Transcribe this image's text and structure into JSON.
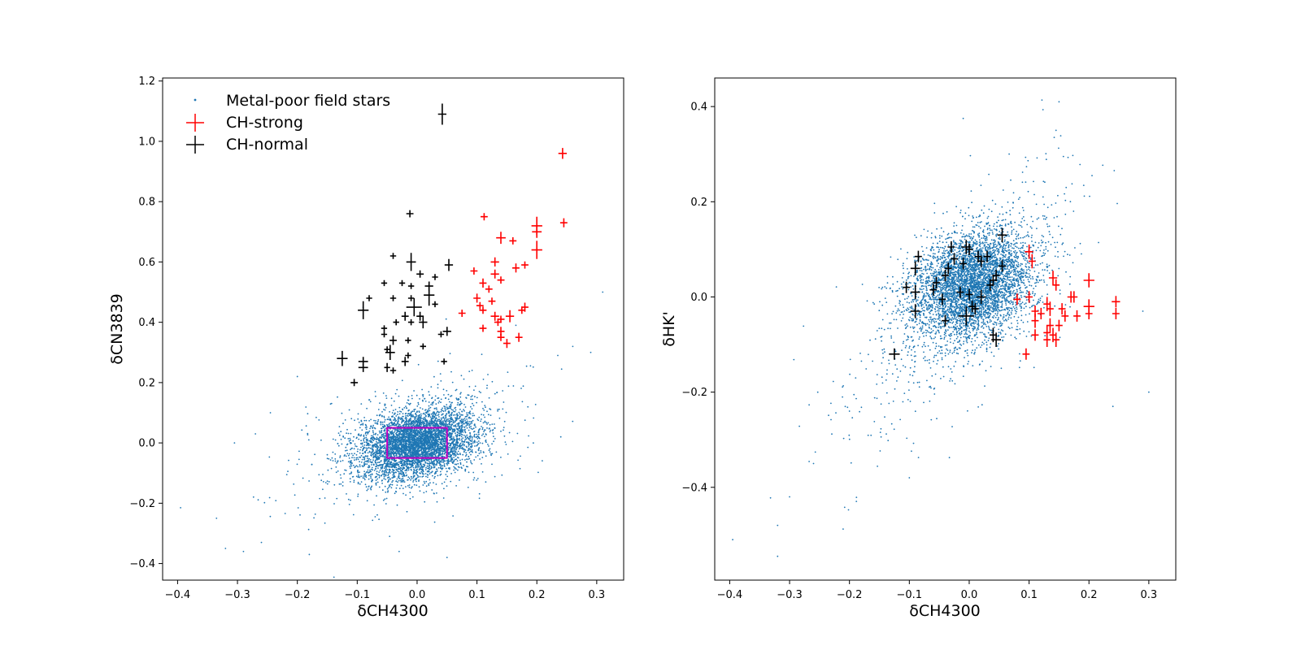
{
  "colors": {
    "field": "#1f77b4",
    "ch_strong": "#ff0000",
    "ch_normal": "#000000",
    "box": "#bf00bf"
  },
  "legend": {
    "entries": [
      "Metal-poor field stars",
      "CH-strong",
      "CH-normal"
    ]
  },
  "chart_data": [
    {
      "type": "scatter",
      "title": "",
      "xlabel": "δCH4300",
      "ylabel": "δCN3839",
      "xlim": [
        -0.425,
        0.345
      ],
      "ylim": [
        -0.455,
        1.21
      ],
      "xticks": [
        -0.4,
        -0.3,
        -0.2,
        -0.1,
        0.0,
        0.1,
        0.2,
        0.3
      ],
      "yticks": [
        -0.4,
        -0.2,
        0.0,
        0.2,
        0.4,
        0.6,
        0.8,
        1.0,
        1.2
      ],
      "grid": false,
      "legend_position": "top-left",
      "box": {
        "x": [
          -0.05,
          0.05
        ],
        "y": [
          -0.05,
          0.05
        ]
      },
      "field_stars": {
        "description_points": "dense cloud centred at (0,0) with sparse outliers",
        "outliers": [
          [
            -0.395,
            -0.215
          ],
          [
            -0.335,
            -0.25
          ],
          [
            -0.32,
            -0.35
          ],
          [
            -0.305,
            0.0
          ],
          [
            -0.29,
            -0.36
          ],
          [
            -0.27,
            0.03
          ],
          [
            -0.26,
            -0.33
          ],
          [
            -0.245,
            0.1
          ],
          [
            -0.2,
            0.22
          ],
          [
            -0.18,
            -0.37
          ],
          [
            -0.09,
            0.45
          ],
          [
            -0.03,
            -0.36
          ],
          [
            0.05,
            -0.38
          ],
          [
            0.26,
            0.32
          ],
          [
            0.29,
            0.3
          ],
          [
            0.31,
            0.5
          ],
          [
            0.235,
            0.29
          ],
          [
            0.24,
            0.02
          ],
          [
            0.165,
            0.39
          ],
          [
            0.14,
            0.36
          ]
        ]
      },
      "ch_strong": [
        {
          "x": 0.243,
          "y": 0.96,
          "ex": 0.007,
          "ey": 0.018
        },
        {
          "x": 0.245,
          "y": 0.73,
          "ex": 0.006,
          "ey": 0.015
        },
        {
          "x": 0.112,
          "y": 0.75,
          "ex": 0.006,
          "ey": 0.012
        },
        {
          "x": 0.2,
          "y": 0.72,
          "ex": 0.009,
          "ey": 0.03
        },
        {
          "x": 0.2,
          "y": 0.7,
          "ex": 0.008,
          "ey": 0.02
        },
        {
          "x": 0.2,
          "y": 0.64,
          "ex": 0.009,
          "ey": 0.03
        },
        {
          "x": 0.14,
          "y": 0.68,
          "ex": 0.008,
          "ey": 0.02
        },
        {
          "x": 0.16,
          "y": 0.67,
          "ex": 0.006,
          "ey": 0.012
        },
        {
          "x": 0.13,
          "y": 0.6,
          "ex": 0.007,
          "ey": 0.015
        },
        {
          "x": 0.18,
          "y": 0.59,
          "ex": 0.006,
          "ey": 0.012
        },
        {
          "x": 0.165,
          "y": 0.58,
          "ex": 0.006,
          "ey": 0.015
        },
        {
          "x": 0.095,
          "y": 0.57,
          "ex": 0.006,
          "ey": 0.012
        },
        {
          "x": 0.13,
          "y": 0.56,
          "ex": 0.007,
          "ey": 0.015
        },
        {
          "x": 0.14,
          "y": 0.54,
          "ex": 0.006,
          "ey": 0.012
        },
        {
          "x": 0.11,
          "y": 0.53,
          "ex": 0.006,
          "ey": 0.015
        },
        {
          "x": 0.12,
          "y": 0.51,
          "ex": 0.006,
          "ey": 0.012
        },
        {
          "x": 0.1,
          "y": 0.48,
          "ex": 0.006,
          "ey": 0.015
        },
        {
          "x": 0.125,
          "y": 0.47,
          "ex": 0.006,
          "ey": 0.012
        },
        {
          "x": 0.105,
          "y": 0.455,
          "ex": 0.006,
          "ey": 0.012
        },
        {
          "x": 0.11,
          "y": 0.44,
          "ex": 0.006,
          "ey": 0.012
        },
        {
          "x": 0.075,
          "y": 0.43,
          "ex": 0.006,
          "ey": 0.012
        },
        {
          "x": 0.18,
          "y": 0.45,
          "ex": 0.006,
          "ey": 0.015
        },
        {
          "x": 0.175,
          "y": 0.44,
          "ex": 0.006,
          "ey": 0.012
        },
        {
          "x": 0.13,
          "y": 0.42,
          "ex": 0.007,
          "ey": 0.015
        },
        {
          "x": 0.14,
          "y": 0.41,
          "ex": 0.006,
          "ey": 0.012
        },
        {
          "x": 0.155,
          "y": 0.42,
          "ex": 0.007,
          "ey": 0.02
        },
        {
          "x": 0.135,
          "y": 0.4,
          "ex": 0.006,
          "ey": 0.012
        },
        {
          "x": 0.11,
          "y": 0.38,
          "ex": 0.006,
          "ey": 0.012
        },
        {
          "x": 0.14,
          "y": 0.37,
          "ex": 0.006,
          "ey": 0.015
        },
        {
          "x": 0.14,
          "y": 0.35,
          "ex": 0.006,
          "ey": 0.012
        },
        {
          "x": 0.17,
          "y": 0.35,
          "ex": 0.006,
          "ey": 0.015
        },
        {
          "x": 0.15,
          "y": 0.33,
          "ex": 0.006,
          "ey": 0.015
        }
      ],
      "ch_normal": [
        {
          "x": 0.042,
          "y": 1.09,
          "ex": 0.007,
          "ey": 0.035
        },
        {
          "x": -0.012,
          "y": 0.76,
          "ex": 0.006,
          "ey": 0.012
        },
        {
          "x": -0.04,
          "y": 0.62,
          "ex": 0.005,
          "ey": 0.01
        },
        {
          "x": -0.01,
          "y": 0.6,
          "ex": 0.008,
          "ey": 0.03
        },
        {
          "x": 0.053,
          "y": 0.59,
          "ex": 0.007,
          "ey": 0.02
        },
        {
          "x": 0.005,
          "y": 0.56,
          "ex": 0.006,
          "ey": 0.012
        },
        {
          "x": 0.03,
          "y": 0.55,
          "ex": 0.005,
          "ey": 0.01
        },
        {
          "x": -0.055,
          "y": 0.53,
          "ex": 0.005,
          "ey": 0.01
        },
        {
          "x": -0.025,
          "y": 0.53,
          "ex": 0.005,
          "ey": 0.01
        },
        {
          "x": -0.01,
          "y": 0.52,
          "ex": 0.005,
          "ey": 0.01
        },
        {
          "x": 0.02,
          "y": 0.52,
          "ex": 0.007,
          "ey": 0.015
        },
        {
          "x": 0.02,
          "y": 0.49,
          "ex": 0.009,
          "ey": 0.035
        },
        {
          "x": -0.08,
          "y": 0.48,
          "ex": 0.005,
          "ey": 0.01
        },
        {
          "x": -0.04,
          "y": 0.48,
          "ex": 0.005,
          "ey": 0.01
        },
        {
          "x": -0.01,
          "y": 0.48,
          "ex": 0.005,
          "ey": 0.01
        },
        {
          "x": 0.03,
          "y": 0.46,
          "ex": 0.005,
          "ey": 0.01
        },
        {
          "x": -0.005,
          "y": 0.45,
          "ex": 0.013,
          "ey": 0.03
        },
        {
          "x": -0.09,
          "y": 0.44,
          "ex": 0.009,
          "ey": 0.03
        },
        {
          "x": -0.02,
          "y": 0.42,
          "ex": 0.006,
          "ey": 0.015
        },
        {
          "x": 0.005,
          "y": 0.42,
          "ex": 0.006,
          "ey": 0.015
        },
        {
          "x": 0.01,
          "y": 0.4,
          "ex": 0.007,
          "ey": 0.02
        },
        {
          "x": -0.01,
          "y": 0.4,
          "ex": 0.005,
          "ey": 0.01
        },
        {
          "x": -0.035,
          "y": 0.4,
          "ex": 0.005,
          "ey": 0.01
        },
        {
          "x": -0.055,
          "y": 0.38,
          "ex": 0.005,
          "ey": 0.01
        },
        {
          "x": 0.05,
          "y": 0.37,
          "ex": 0.007,
          "ey": 0.015
        },
        {
          "x": 0.04,
          "y": 0.36,
          "ex": 0.005,
          "ey": 0.01
        },
        {
          "x": -0.055,
          "y": 0.36,
          "ex": 0.005,
          "ey": 0.01
        },
        {
          "x": -0.04,
          "y": 0.34,
          "ex": 0.006,
          "ey": 0.015
        },
        {
          "x": -0.015,
          "y": 0.34,
          "ex": 0.005,
          "ey": 0.01
        },
        {
          "x": 0.01,
          "y": 0.32,
          "ex": 0.005,
          "ey": 0.01
        },
        {
          "x": -0.05,
          "y": 0.31,
          "ex": 0.005,
          "ey": 0.01
        },
        {
          "x": -0.045,
          "y": 0.3,
          "ex": 0.008,
          "ey": 0.025
        },
        {
          "x": -0.125,
          "y": 0.28,
          "ex": 0.009,
          "ey": 0.025
        },
        {
          "x": -0.015,
          "y": 0.29,
          "ex": 0.005,
          "ey": 0.01
        },
        {
          "x": -0.02,
          "y": 0.27,
          "ex": 0.006,
          "ey": 0.015
        },
        {
          "x": -0.09,
          "y": 0.27,
          "ex": 0.008,
          "ey": 0.015
        },
        {
          "x": 0.045,
          "y": 0.27,
          "ex": 0.005,
          "ey": 0.01
        },
        {
          "x": -0.09,
          "y": 0.25,
          "ex": 0.008,
          "ey": 0.015
        },
        {
          "x": -0.05,
          "y": 0.25,
          "ex": 0.005,
          "ey": 0.015
        },
        {
          "x": -0.04,
          "y": 0.24,
          "ex": 0.005,
          "ey": 0.01
        },
        {
          "x": -0.105,
          "y": 0.2,
          "ex": 0.006,
          "ey": 0.012
        }
      ]
    },
    {
      "type": "scatter",
      "title": "",
      "xlabel": "δCH4300",
      "ylabel": "δHK'",
      "xlim": [
        -0.425,
        0.345
      ],
      "ylim": [
        -0.595,
        0.46
      ],
      "xticks": [
        -0.4,
        -0.3,
        -0.2,
        -0.1,
        0.0,
        0.1,
        0.2,
        0.3
      ],
      "yticks": [
        -0.4,
        -0.2,
        0.0,
        0.2,
        0.4
      ],
      "grid": false,
      "field_stars": {
        "description_points": "dense cloud centred near (0,0.02) with a sparse tail toward (-0.3,-0.45)",
        "outliers": [
          [
            -0.395,
            -0.51
          ],
          [
            -0.32,
            -0.545
          ],
          [
            -0.32,
            -0.48
          ],
          [
            -0.3,
            -0.42
          ],
          [
            -0.26,
            -0.35
          ],
          [
            -0.2,
            -0.24
          ],
          [
            -0.1,
            -0.38
          ],
          [
            -0.01,
            0.375
          ],
          [
            0.15,
            0.41
          ],
          [
            0.145,
            0.35
          ],
          [
            0.3,
            -0.2
          ],
          [
            0.29,
            -0.03
          ],
          [
            0.24,
            -0.23
          ]
        ]
      },
      "ch_strong": [
        {
          "x": 0.1,
          "y": 0.095,
          "ex": 0.007,
          "ey": 0.015
        },
        {
          "x": 0.105,
          "y": 0.075,
          "ex": 0.006,
          "ey": 0.015
        },
        {
          "x": 0.14,
          "y": 0.04,
          "ex": 0.007,
          "ey": 0.015
        },
        {
          "x": 0.145,
          "y": 0.025,
          "ex": 0.006,
          "ey": 0.012
        },
        {
          "x": 0.2,
          "y": 0.035,
          "ex": 0.009,
          "ey": 0.015
        },
        {
          "x": 0.17,
          "y": 0.0,
          "ex": 0.006,
          "ey": 0.012
        },
        {
          "x": 0.175,
          "y": 0.0,
          "ex": 0.006,
          "ey": 0.012
        },
        {
          "x": 0.1,
          "y": 0.0,
          "ex": 0.006,
          "ey": 0.012
        },
        {
          "x": 0.08,
          "y": -0.005,
          "ex": 0.006,
          "ey": 0.012
        },
        {
          "x": 0.245,
          "y": -0.01,
          "ex": 0.007,
          "ey": 0.012
        },
        {
          "x": 0.13,
          "y": -0.015,
          "ex": 0.006,
          "ey": 0.015
        },
        {
          "x": 0.135,
          "y": -0.025,
          "ex": 0.006,
          "ey": 0.015
        },
        {
          "x": 0.2,
          "y": -0.02,
          "ex": 0.009,
          "ey": 0.015
        },
        {
          "x": 0.155,
          "y": -0.025,
          "ex": 0.006,
          "ey": 0.012
        },
        {
          "x": 0.11,
          "y": -0.03,
          "ex": 0.006,
          "ey": 0.012
        },
        {
          "x": 0.12,
          "y": -0.035,
          "ex": 0.006,
          "ey": 0.012
        },
        {
          "x": 0.16,
          "y": -0.04,
          "ex": 0.006,
          "ey": 0.012
        },
        {
          "x": 0.18,
          "y": -0.04,
          "ex": 0.006,
          "ey": 0.012
        },
        {
          "x": 0.2,
          "y": -0.035,
          "ex": 0.006,
          "ey": 0.012
        },
        {
          "x": 0.245,
          "y": -0.035,
          "ex": 0.006,
          "ey": 0.012
        },
        {
          "x": 0.11,
          "y": -0.05,
          "ex": 0.006,
          "ey": 0.015
        },
        {
          "x": 0.135,
          "y": -0.06,
          "ex": 0.006,
          "ey": 0.015
        },
        {
          "x": 0.15,
          "y": -0.06,
          "ex": 0.006,
          "ey": 0.012
        },
        {
          "x": 0.13,
          "y": -0.075,
          "ex": 0.006,
          "ey": 0.015
        },
        {
          "x": 0.11,
          "y": -0.08,
          "ex": 0.006,
          "ey": 0.012
        },
        {
          "x": 0.14,
          "y": -0.08,
          "ex": 0.006,
          "ey": 0.015
        },
        {
          "x": 0.13,
          "y": -0.09,
          "ex": 0.006,
          "ey": 0.015
        },
        {
          "x": 0.145,
          "y": -0.09,
          "ex": 0.006,
          "ey": 0.015
        },
        {
          "x": 0.095,
          "y": -0.12,
          "ex": 0.006,
          "ey": 0.012
        }
      ],
      "ch_normal": [
        {
          "x": 0.055,
          "y": 0.13,
          "ex": 0.008,
          "ey": 0.015
        },
        {
          "x": -0.03,
          "y": 0.105,
          "ex": 0.006,
          "ey": 0.012
        },
        {
          "x": -0.005,
          "y": 0.105,
          "ex": 0.008,
          "ey": 0.015
        },
        {
          "x": 0.0,
          "y": 0.1,
          "ex": 0.006,
          "ey": 0.012
        },
        {
          "x": -0.085,
          "y": 0.085,
          "ex": 0.006,
          "ey": 0.012
        },
        {
          "x": 0.015,
          "y": 0.085,
          "ex": 0.006,
          "ey": 0.012
        },
        {
          "x": 0.03,
          "y": 0.085,
          "ex": 0.006,
          "ey": 0.012
        },
        {
          "x": -0.025,
          "y": 0.08,
          "ex": 0.006,
          "ey": 0.012
        },
        {
          "x": 0.02,
          "y": 0.075,
          "ex": 0.006,
          "ey": 0.012
        },
        {
          "x": -0.01,
          "y": 0.07,
          "ex": 0.006,
          "ey": 0.012
        },
        {
          "x": 0.055,
          "y": 0.065,
          "ex": 0.006,
          "ey": 0.012
        },
        {
          "x": -0.09,
          "y": 0.06,
          "ex": 0.008,
          "ey": 0.015
        },
        {
          "x": -0.035,
          "y": 0.06,
          "ex": 0.006,
          "ey": 0.012
        },
        {
          "x": -0.04,
          "y": 0.045,
          "ex": 0.006,
          "ey": 0.012
        },
        {
          "x": 0.045,
          "y": 0.045,
          "ex": 0.006,
          "ey": 0.012
        },
        {
          "x": 0.04,
          "y": 0.035,
          "ex": 0.006,
          "ey": 0.012
        },
        {
          "x": -0.055,
          "y": 0.03,
          "ex": 0.006,
          "ey": 0.012
        },
        {
          "x": 0.035,
          "y": 0.025,
          "ex": 0.006,
          "ey": 0.012
        },
        {
          "x": -0.105,
          "y": 0.02,
          "ex": 0.006,
          "ey": 0.012
        },
        {
          "x": -0.06,
          "y": 0.015,
          "ex": 0.006,
          "ey": 0.012
        },
        {
          "x": -0.09,
          "y": 0.01,
          "ex": 0.008,
          "ey": 0.015
        },
        {
          "x": -0.015,
          "y": 0.01,
          "ex": 0.006,
          "ey": 0.012
        },
        {
          "x": 0.0,
          "y": 0.005,
          "ex": 0.006,
          "ey": 0.012
        },
        {
          "x": 0.02,
          "y": 0.0,
          "ex": 0.008,
          "ey": 0.015
        },
        {
          "x": -0.045,
          "y": -0.005,
          "ex": 0.006,
          "ey": 0.012
        },
        {
          "x": 0.005,
          "y": -0.02,
          "ex": 0.006,
          "ey": 0.012
        },
        {
          "x": 0.01,
          "y": -0.025,
          "ex": 0.006,
          "ey": 0.012
        },
        {
          "x": -0.09,
          "y": -0.03,
          "ex": 0.008,
          "ey": 0.015
        },
        {
          "x": -0.005,
          "y": -0.04,
          "ex": 0.013,
          "ey": 0.02
        },
        {
          "x": -0.04,
          "y": -0.05,
          "ex": 0.006,
          "ey": 0.012
        },
        {
          "x": 0.04,
          "y": -0.08,
          "ex": 0.006,
          "ey": 0.015
        },
        {
          "x": 0.045,
          "y": -0.09,
          "ex": 0.008,
          "ey": 0.015
        },
        {
          "x": -0.125,
          "y": -0.12,
          "ex": 0.009,
          "ey": 0.012
        }
      ]
    }
  ]
}
